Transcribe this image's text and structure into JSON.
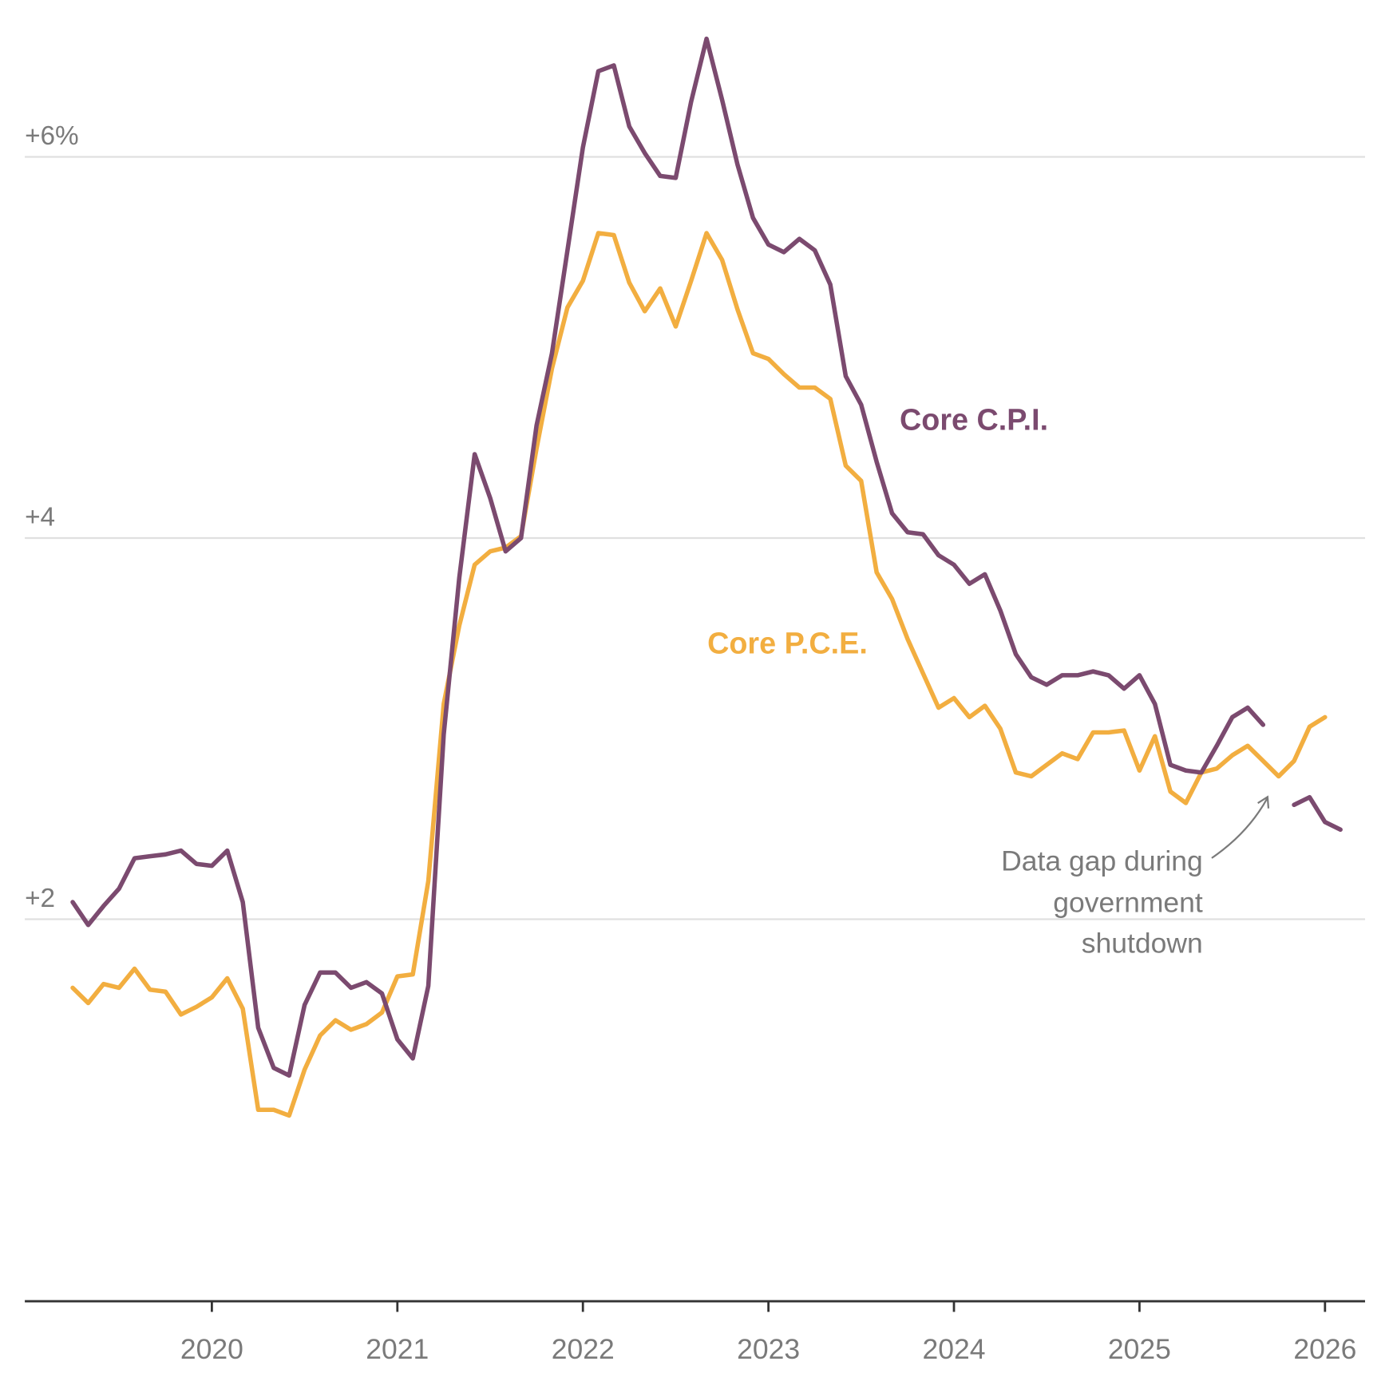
{
  "chart_data": {
    "type": "line",
    "title": "",
    "xlabel": "",
    "ylabel": "",
    "ylim": [
      0,
      6.6
    ],
    "grid": true,
    "y_ticks": [
      {
        "value": 2,
        "label": "+2"
      },
      {
        "value": 4,
        "label": "+4"
      },
      {
        "value": 6,
        "label": "+6%"
      }
    ],
    "x_ticks": [
      "2020",
      "2021",
      "2022",
      "2023",
      "2024",
      "2025",
      "2026"
    ],
    "x_frequency": "monthly",
    "x_start": "2019-04",
    "series": [
      {
        "name": "Core C.P.I.",
        "color": "#7b4a6f",
        "values": [
          2.09,
          1.97,
          2.07,
          2.16,
          2.32,
          2.33,
          2.34,
          2.36,
          2.29,
          2.28,
          2.36,
          2.09,
          1.43,
          1.22,
          1.18,
          1.55,
          1.72,
          1.72,
          1.64,
          1.67,
          1.61,
          1.37,
          1.27,
          1.65,
          2.97,
          3.79,
          4.44,
          4.21,
          3.93,
          4.0,
          4.59,
          4.97,
          5.51,
          6.05,
          6.45,
          6.48,
          6.16,
          6.02,
          5.9,
          5.89,
          6.29,
          6.62,
          6.3,
          5.96,
          5.68,
          5.54,
          5.5,
          5.57,
          5.51,
          5.33,
          4.85,
          4.7,
          4.4,
          4.13,
          4.03,
          4.02,
          3.91,
          3.86,
          3.76,
          3.81,
          3.62,
          3.39,
          3.27,
          3.23,
          3.28,
          3.28,
          3.3,
          3.28,
          3.21,
          3.28,
          3.13,
          2.81,
          2.78,
          2.77,
          2.91,
          3.06,
          3.11,
          3.02,
          null,
          2.6,
          2.64,
          2.51,
          2.47
        ]
      },
      {
        "name": "Core P.C.E.",
        "color": "#f2ae40",
        "values": [
          1.64,
          1.56,
          1.66,
          1.64,
          1.74,
          1.63,
          1.62,
          1.5,
          1.54,
          1.59,
          1.69,
          1.53,
          1.0,
          1.0,
          0.97,
          1.21,
          1.39,
          1.47,
          1.42,
          1.45,
          1.51,
          1.7,
          1.71,
          2.2,
          3.13,
          3.54,
          3.86,
          3.93,
          3.95,
          4.01,
          4.47,
          4.89,
          5.21,
          5.35,
          5.6,
          5.59,
          5.34,
          5.19,
          5.31,
          5.11,
          5.35,
          5.6,
          5.46,
          5.2,
          4.97,
          4.94,
          4.86,
          4.79,
          4.79,
          4.73,
          4.38,
          4.3,
          3.82,
          3.68,
          3.47,
          3.29,
          3.11,
          3.16,
          3.06,
          3.12,
          3.0,
          2.77,
          2.75,
          2.81,
          2.87,
          2.84,
          2.98,
          2.98,
          2.99,
          2.78,
          2.96,
          2.67,
          2.61,
          2.77,
          2.79,
          2.86,
          2.91,
          2.83,
          2.75,
          2.83,
          3.01,
          3.06
        ]
      }
    ],
    "annotations": [
      {
        "lines": [
          "Data gap during",
          "government",
          "shutdown"
        ],
        "target": "2025-10"
      }
    ]
  }
}
